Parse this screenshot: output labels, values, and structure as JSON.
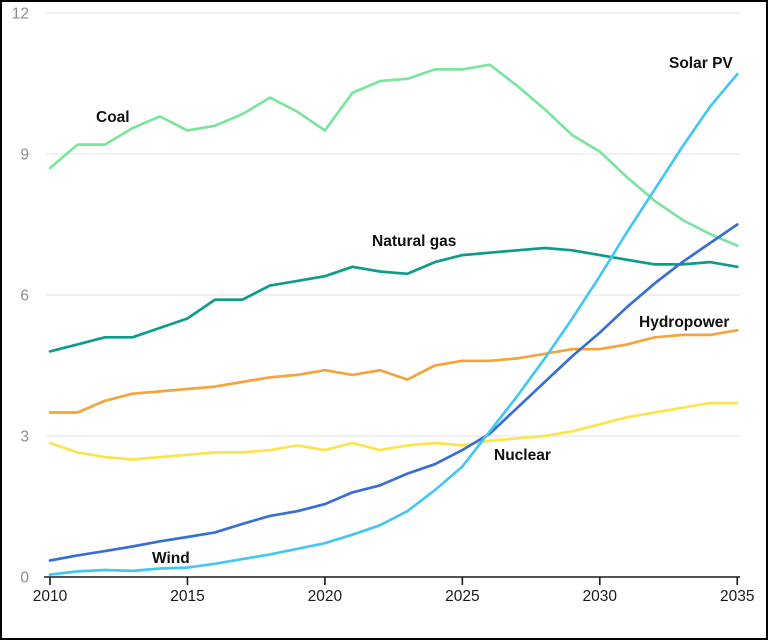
{
  "chart_data": {
    "type": "line",
    "title": "",
    "xlabel": "",
    "ylabel": "",
    "x": [
      2010,
      2011,
      2012,
      2013,
      2014,
      2015,
      2016,
      2017,
      2018,
      2019,
      2020,
      2021,
      2022,
      2023,
      2024,
      2025,
      2026,
      2027,
      2028,
      2029,
      2030,
      2031,
      2032,
      2033,
      2034,
      2035
    ],
    "xticks": [
      2010,
      2015,
      2020,
      2025,
      2030,
      2035
    ],
    "yticks": [
      0,
      3,
      6,
      9,
      12
    ],
    "xlim": [
      2010,
      2035
    ],
    "ylim": [
      0,
      12
    ],
    "grid": "horizontal",
    "legend_position": "inline-labels",
    "series": [
      {
        "name": "Coal",
        "color": "#7CE49F",
        "values": [
          8.7,
          9.2,
          9.2,
          9.55,
          9.8,
          9.5,
          9.6,
          9.85,
          10.2,
          9.9,
          9.5,
          10.3,
          10.55,
          10.6,
          10.8,
          10.8,
          10.9,
          10.45,
          9.95,
          9.4,
          9.05,
          8.5,
          8.0,
          7.6,
          7.3,
          7.05
        ]
      },
      {
        "name": "Natural gas",
        "color": "#0D9B8C",
        "values": [
          4.8,
          4.95,
          5.1,
          5.1,
          5.3,
          5.5,
          5.9,
          5.9,
          6.2,
          6.3,
          6.4,
          6.6,
          6.5,
          6.45,
          6.7,
          6.85,
          6.9,
          6.95,
          7.0,
          6.95,
          6.85,
          6.75,
          6.65,
          6.65,
          6.7,
          6.6
        ]
      },
      {
        "name": "Hydropower",
        "color": "#F5A43C",
        "values": [
          3.5,
          3.5,
          3.75,
          3.9,
          3.95,
          4.0,
          4.05,
          4.15,
          4.25,
          4.3,
          4.4,
          4.3,
          4.4,
          4.2,
          4.5,
          4.6,
          4.6,
          4.65,
          4.75,
          4.85,
          4.85,
          4.95,
          5.1,
          5.15,
          5.15,
          5.25
        ]
      },
      {
        "name": "Nuclear",
        "color": "#FBE44D",
        "values": [
          2.85,
          2.65,
          2.55,
          2.5,
          2.55,
          2.6,
          2.65,
          2.65,
          2.7,
          2.8,
          2.7,
          2.85,
          2.7,
          2.8,
          2.85,
          2.8,
          2.9,
          2.95,
          3.0,
          3.1,
          3.25,
          3.4,
          3.5,
          3.6,
          3.7,
          3.7
        ]
      },
      {
        "name": "Wind",
        "color": "#3A6FCF",
        "values": [
          0.35,
          0.46,
          0.55,
          0.65,
          0.76,
          0.85,
          0.95,
          1.13,
          1.3,
          1.4,
          1.55,
          1.8,
          1.95,
          2.2,
          2.4,
          2.7,
          3.05,
          3.6,
          4.15,
          4.7,
          5.2,
          5.75,
          6.25,
          6.7,
          7.1,
          7.5
        ]
      },
      {
        "name": "Solar PV",
        "color": "#46C7F2",
        "values": [
          0.05,
          0.12,
          0.15,
          0.13,
          0.18,
          0.2,
          0.28,
          0.38,
          0.48,
          0.6,
          0.72,
          0.9,
          1.1,
          1.4,
          1.85,
          2.35,
          3.1,
          3.85,
          4.65,
          5.5,
          6.4,
          7.35,
          8.25,
          9.15,
          10.0,
          10.7
        ]
      }
    ]
  },
  "style": {
    "background": "#FFFFFF",
    "border_color": "#000000",
    "grid_color": "#E6E6E6",
    "axis_color": "#1A1A1A",
    "x_tick_label_color": "#1A1A1A",
    "y_tick_label_color": "#8C8C8C",
    "series_label_color": "#111111"
  }
}
